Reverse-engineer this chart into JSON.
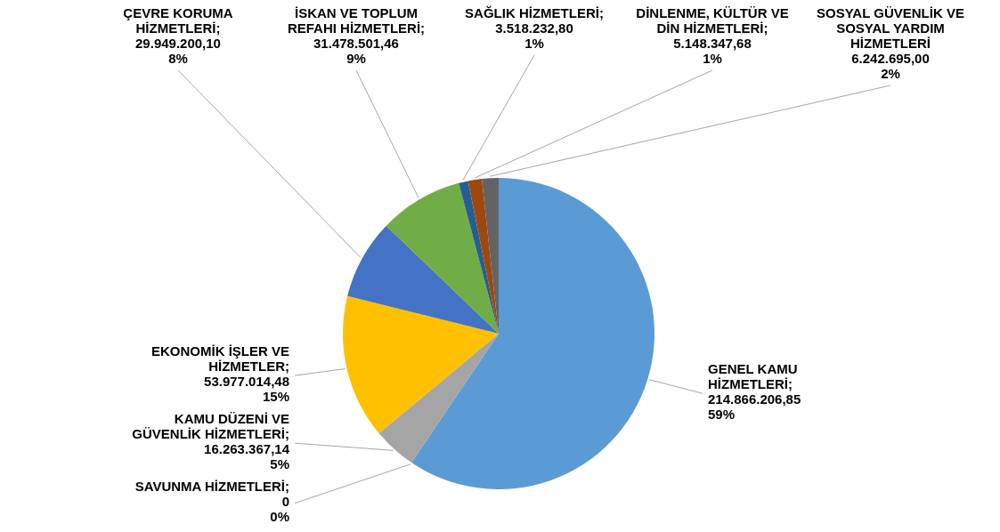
{
  "chart_data": {
    "type": "pie",
    "categories": [
      "GENEL KAMU HİZMETLERİ",
      "SAVUNMA HİZMETLERİ",
      "KAMU DÜZENİ VE GÜVENLİK HİZMETLERİ",
      "EKONOMİK İŞLER VE HİZMETLER",
      "ÇEVRE KORUMA HİZMETLERİ",
      "İSKAN VE TOPLUM REFAHI HİZMETLERİ",
      "SAĞLIK HİZMETLERİ",
      "DİNLENME, KÜLTÜR VE DİN HİZMETLERİ",
      "SOSYAL GÜVENLİK VE SOSYAL YARDIM HİZMETLERİ"
    ],
    "values": [
      214866206.85,
      0,
      16263367.14,
      53977014.48,
      29949200.1,
      31478501.46,
      3518232.8,
      5148347.68,
      6242695.0
    ],
    "colors": [
      "#5b9bd5",
      "#ed7d31",
      "#a5a5a5",
      "#ffc000",
      "#4472c4",
      "#70ad47",
      "#255e91",
      "#9e480e",
      "#636363"
    ],
    "value_labels": [
      ";\n214.866.206,85\n59%",
      ";\n0\n0%",
      ";\n16.263.367,14\n5%",
      ";\n53.977.014,48\n15%",
      ";\n29.949.200,10\n8%",
      ";\n31.478.501,46\n9%",
      ";\n3.518.232,80\n1%",
      ";\n5.148.347,68\n1%",
      "\n6.242.695,00\n2%"
    ]
  }
}
